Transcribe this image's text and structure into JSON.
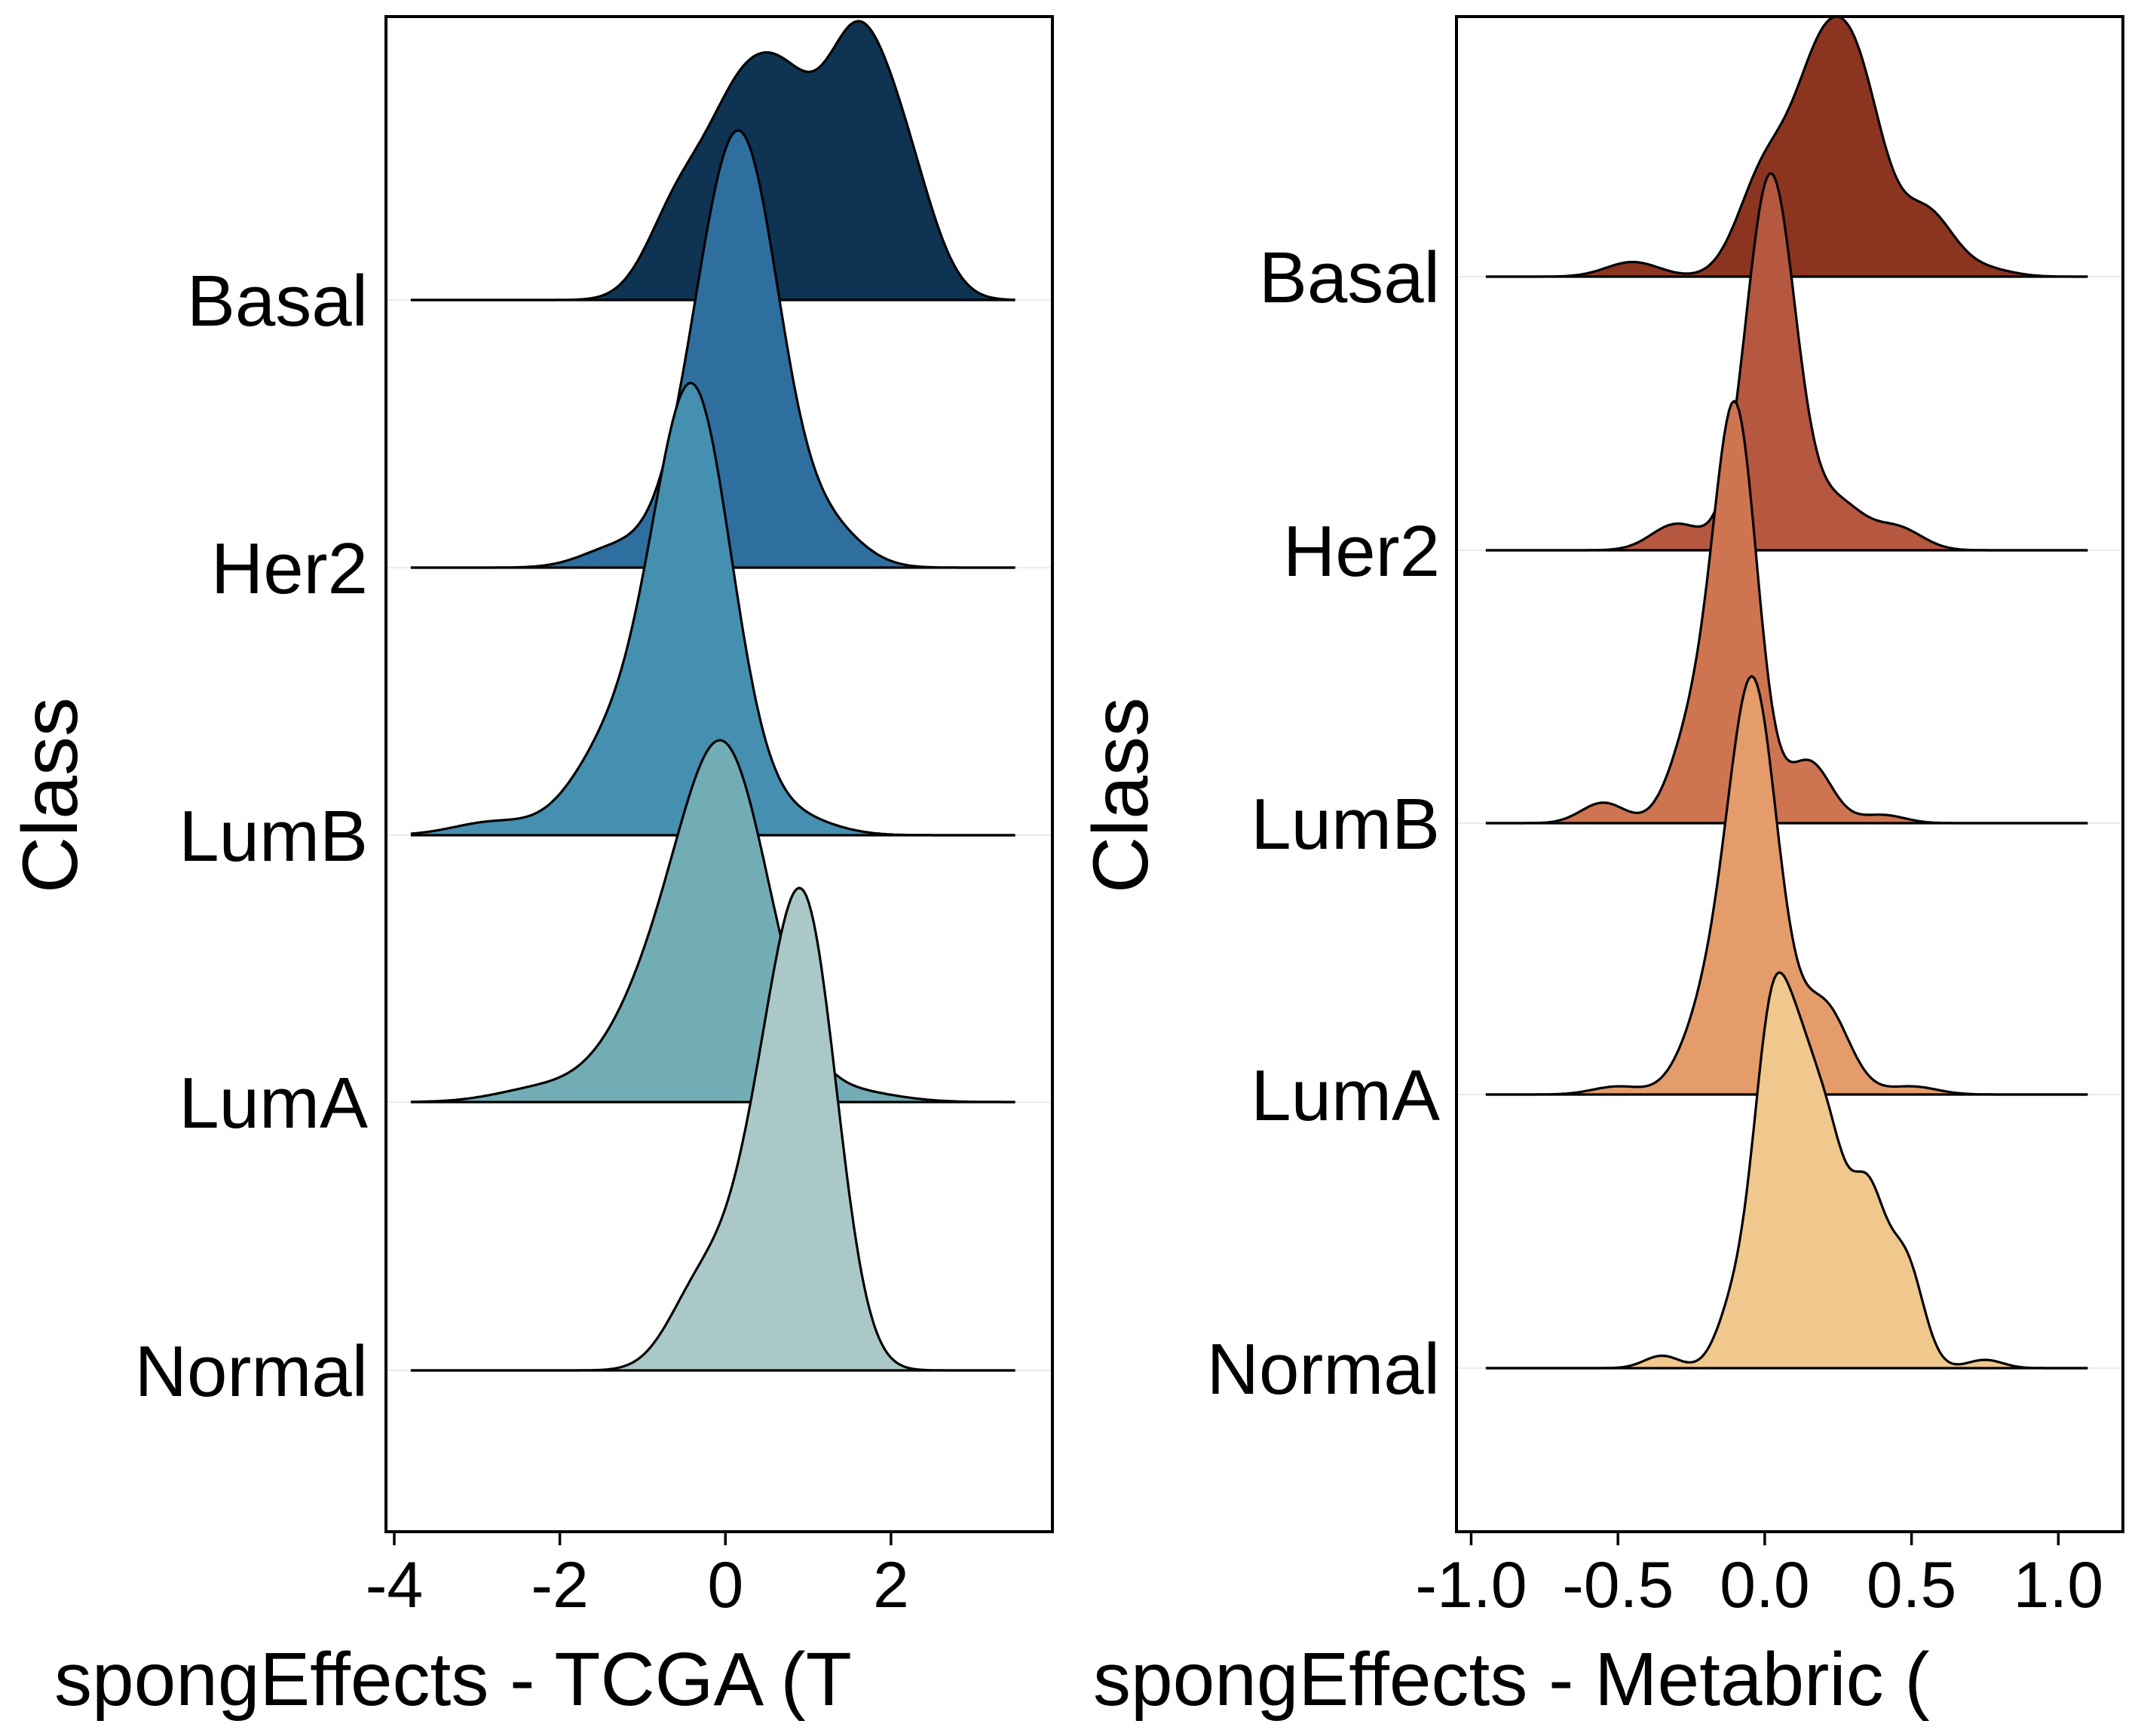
{
  "chart_data": [
    {
      "type": "ridgeline",
      "id": "tcga",
      "xlabel": "spongEffects - TCGA (T",
      "ylabel": "Class",
      "xlim": [
        -4.1,
        3.95
      ],
      "xticks": [
        "-4",
        "-2",
        "0",
        "2"
      ],
      "xtick_values": [
        -4,
        -2,
        0,
        2
      ],
      "categories": [
        "Basal",
        "Her2",
        "LumB",
        "LumA",
        "Normal"
      ],
      "series": [
        {
          "name": "Basal",
          "color": "#0e3353",
          "range": [
            -3.8,
            3.5
          ],
          "peaks": [
            [
              -0.55,
              0.42
            ],
            [
              0.15,
              0.72
            ],
            [
              0.75,
              0.75
            ],
            [
              1.55,
              1.0
            ],
            [
              2.15,
              0.55
            ]
          ],
          "sigma": 0.38
        },
        {
          "name": "Her2",
          "color": "#2f6f9f",
          "range": [
            -3.8,
            3.5
          ],
          "peaks": [
            [
              -1.3,
              0.06
            ],
            [
              -0.2,
              0.55
            ],
            [
              0.3,
              0.95
            ],
            [
              1.2,
              0.12
            ]
          ],
          "sigma": 0.42
        },
        {
          "name": "LumB",
          "color": "#4590b0",
          "range": [
            -3.8,
            3.5
          ],
          "peaks": [
            [
              -2.8,
              0.03
            ],
            [
              -1.4,
              0.18
            ],
            [
              -0.4,
              1.0
            ],
            [
              0.8,
              0.04
            ]
          ],
          "sigma": 0.48
        },
        {
          "name": "LumA",
          "color": "#72adb5",
          "range": [
            -3.8,
            3.5
          ],
          "peaks": [
            [
              -2.2,
              0.04
            ],
            [
              -0.9,
              0.25
            ],
            [
              0.0,
              0.98
            ],
            [
              1.5,
              0.03
            ]
          ],
          "sigma": 0.55
        },
        {
          "name": "Normal",
          "color": "#aac8c8",
          "range": [
            -3.8,
            3.5
          ],
          "peaks": [
            [
              -0.3,
              0.2
            ],
            [
              0.45,
              0.45
            ],
            [
              1.0,
              1.0
            ]
          ],
          "sigma": 0.38
        }
      ]
    },
    {
      "type": "ridgeline",
      "id": "metabric",
      "xlabel": "spongEffects - Metabric (",
      "ylabel": "Class",
      "xlim": [
        -1.05,
        1.22
      ],
      "xticks": [
        "-1.0",
        "-0.5",
        "0.0",
        "0.5",
        "1.0"
      ],
      "xtick_values": [
        -1.0,
        -0.5,
        0.0,
        0.5,
        1.0
      ],
      "categories": [
        "Basal",
        "Her2",
        "LumB",
        "LumA",
        "Normal"
      ],
      "series": [
        {
          "name": "Basal",
          "color": "#8b3521",
          "range": [
            -0.95,
            1.1
          ],
          "peaks": [
            [
              -0.45,
              0.08
            ],
            [
              0.0,
              0.55
            ],
            [
              0.18,
              0.95
            ],
            [
              0.32,
              0.95
            ],
            [
              0.55,
              0.35
            ],
            [
              0.75,
              0.04
            ]
          ],
          "sigma": 0.09
        },
        {
          "name": "Her2",
          "color": "#b6573f",
          "range": [
            -0.95,
            1.1
          ],
          "peaks": [
            [
              -0.3,
              0.07
            ],
            [
              0.02,
              1.0
            ],
            [
              0.25,
              0.12
            ],
            [
              0.45,
              0.06
            ]
          ],
          "sigma": 0.085
        },
        {
          "name": "LumB",
          "color": "#cf7450",
          "range": [
            -0.95,
            1.1
          ],
          "peaks": [
            [
              -0.55,
              0.05
            ],
            [
              -0.25,
              0.2
            ],
            [
              -0.1,
              1.0
            ],
            [
              0.15,
              0.15
            ],
            [
              0.4,
              0.02
            ]
          ],
          "sigma": 0.075
        },
        {
          "name": "LumA",
          "color": "#e39c6a",
          "range": [
            -0.95,
            1.1
          ],
          "peaks": [
            [
              -0.5,
              0.02
            ],
            [
              -0.2,
              0.18
            ],
            [
              -0.04,
              1.0
            ],
            [
              0.2,
              0.22
            ],
            [
              0.5,
              0.02
            ]
          ],
          "sigma": 0.085
        },
        {
          "name": "Normal",
          "color": "#f0c78c",
          "range": [
            -0.95,
            1.1
          ],
          "peaks": [
            [
              -0.35,
              0.03
            ],
            [
              -0.1,
              0.15
            ],
            [
              0.02,
              0.75
            ],
            [
              0.12,
              0.55
            ],
            [
              0.22,
              0.45
            ],
            [
              0.35,
              0.4
            ],
            [
              0.48,
              0.25
            ],
            [
              0.75,
              0.02
            ]
          ],
          "sigma": 0.06
        }
      ]
    }
  ]
}
